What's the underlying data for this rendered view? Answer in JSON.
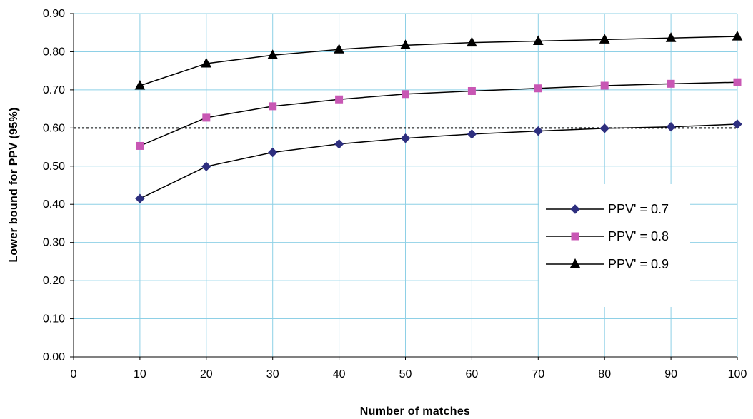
{
  "chart_data": {
    "type": "line",
    "title": "",
    "xlabel": "Number of matches",
    "ylabel": "Lower bound for PPV (95%)",
    "xlim": [
      0,
      100
    ],
    "ylim": [
      0,
      0.9
    ],
    "x_ticks": [
      "0",
      "10",
      "20",
      "30",
      "40",
      "50",
      "60",
      "70",
      "80",
      "90",
      "100"
    ],
    "y_ticks": [
      "0.00",
      "0.10",
      "0.20",
      "0.30",
      "0.40",
      "0.50",
      "0.60",
      "0.70",
      "0.80",
      "0.90"
    ],
    "grid": true,
    "legend_position": "right",
    "x": [
      10,
      20,
      30,
      40,
      50,
      60,
      70,
      80,
      90,
      100
    ],
    "series": [
      {
        "name": "PPV' = 0.7",
        "color": "#2E2F7F",
        "marker": "diamond",
        "values": [
          0.415,
          0.499,
          0.536,
          0.558,
          0.573,
          0.584,
          0.592,
          0.599,
          0.603,
          0.61
        ]
      },
      {
        "name": "PPV' = 0.8",
        "color": "#C857B4",
        "marker": "square",
        "values": [
          0.553,
          0.627,
          0.657,
          0.675,
          0.689,
          0.697,
          0.704,
          0.711,
          0.716,
          0.72
        ]
      },
      {
        "name": "PPV' = 0.9",
        "color": "#000000",
        "marker": "triangle",
        "values": [
          0.711,
          0.769,
          0.791,
          0.806,
          0.817,
          0.824,
          0.828,
          0.832,
          0.836,
          0.84
        ]
      }
    ],
    "reference_line": {
      "y": 0.6,
      "style": "dotted"
    }
  }
}
